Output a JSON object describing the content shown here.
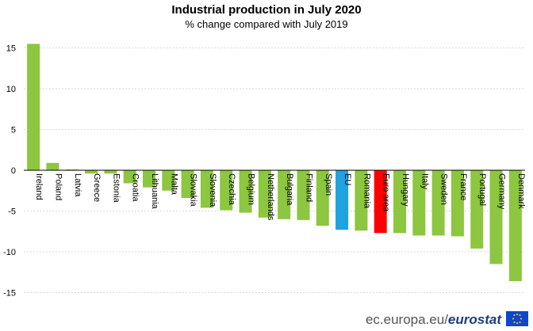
{
  "chart_data": {
    "type": "bar",
    "title": "Industrial production in July 2020",
    "subtitle": "% change compared with July 2019",
    "xlabel": "",
    "ylabel": "",
    "ylim": [
      -16,
      17
    ],
    "yticks": [
      15,
      10,
      5,
      0,
      -5,
      -10,
      -15
    ],
    "grid": true,
    "legend": "none",
    "categories": [
      "Ireland",
      "Poland",
      "Latvia",
      "Greece",
      "Estonia",
      "Croatia",
      "Lithuania",
      "Malta",
      "Slovakia",
      "Slovenia",
      "Czechia",
      "Belgium",
      "Netherlands",
      "Bulgaria",
      "Finland",
      "Spain",
      "EU",
      "Romania",
      "Euro area",
      "Hungary",
      "Italy",
      "Sweden",
      "France",
      "Portugal",
      "Germany",
      "Denmark"
    ],
    "values": [
      15.5,
      0.9,
      0.1,
      -0.4,
      -0.4,
      -1.6,
      -2.1,
      -2.5,
      -3.4,
      -4.6,
      -4.9,
      -5.2,
      -5.8,
      -6.0,
      -6.1,
      -6.8,
      -7.3,
      -7.4,
      -7.7,
      -7.7,
      -8.0,
      -8.0,
      -8.1,
      -9.6,
      -11.5,
      -13.6
    ],
    "colors": {
      "default": "#8dc63f",
      "EU": "#1ea2e1",
      "Euro area": "#ff0000"
    }
  },
  "footer": {
    "site": "ec.europa.eu/",
    "brand": "eurostat"
  }
}
